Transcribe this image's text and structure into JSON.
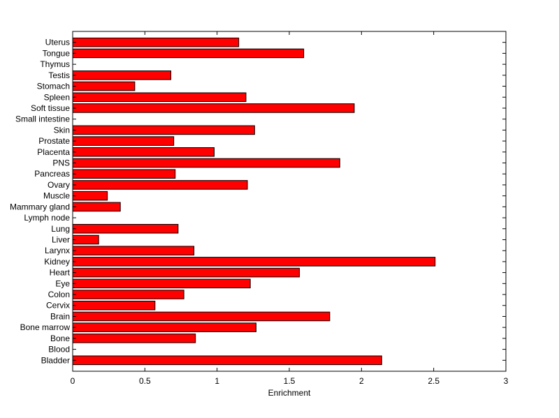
{
  "chart_data": {
    "type": "bar",
    "orientation": "horizontal",
    "categories": [
      "Uterus",
      "Tongue",
      "Thymus",
      "Testis",
      "Stomach",
      "Spleen",
      "Soft tissue",
      "Small intestine",
      "Skin",
      "Prostate",
      "Placenta",
      "PNS",
      "Pancreas",
      "Ovary",
      "Muscle",
      "Mammary gland",
      "Lymph node",
      "Lung",
      "Liver",
      "Larynx",
      "Kidney",
      "Heart",
      "Eye",
      "Colon",
      "Cervix",
      "Brain",
      "Bone marrow",
      "Bone",
      "Blood",
      "Bladder"
    ],
    "values": [
      1.15,
      1.6,
      0,
      0.68,
      0.43,
      1.2,
      1.95,
      0,
      1.26,
      0.7,
      0.98,
      1.85,
      0.71,
      1.21,
      0.24,
      0.33,
      0,
      0.73,
      0.18,
      0.84,
      2.51,
      1.57,
      1.23,
      0.77,
      0.57,
      1.78,
      1.27,
      0.85,
      0,
      2.14
    ],
    "xlabel": "Enrichment",
    "ylabel": "",
    "title": "",
    "xlim": [
      0,
      3
    ],
    "xticks": [
      0,
      0.5,
      1,
      1.5,
      2,
      2.5,
      3
    ],
    "xtick_labels": [
      "0",
      "0.5",
      "1",
      "1.5",
      "2",
      "2.5",
      "3"
    ],
    "grid": false,
    "bar_color": "#ff0000",
    "edge_color": "#000000"
  }
}
